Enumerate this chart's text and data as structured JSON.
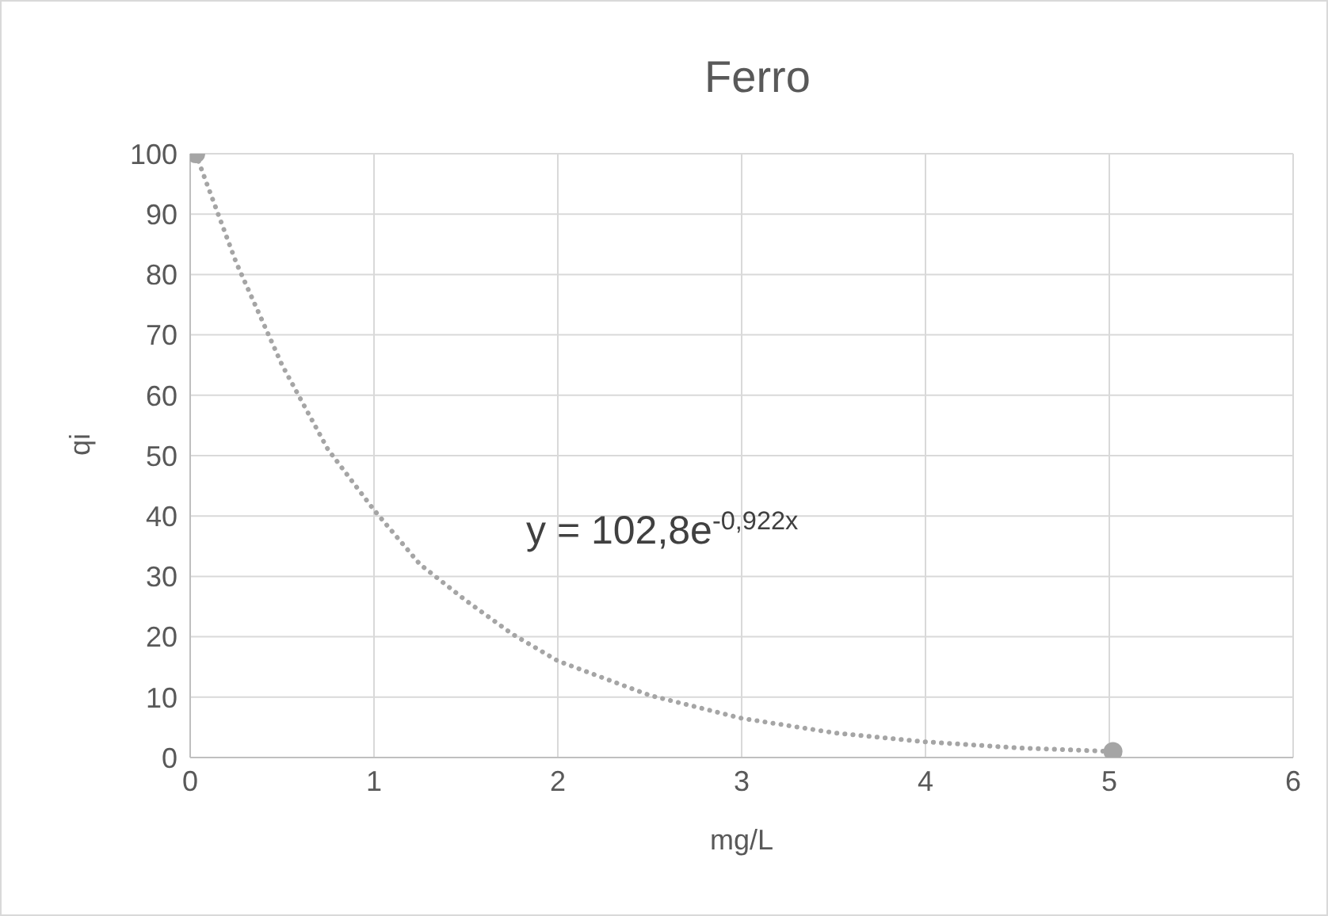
{
  "chart_data": {
    "type": "scatter",
    "title": "Ferro",
    "xlabel": "mg/L",
    "ylabel": "qi",
    "xlim": [
      0,
      6
    ],
    "xticks": [
      0,
      1,
      2,
      3,
      4,
      5,
      6
    ],
    "ylim": [
      0,
      100
    ],
    "yticks": [
      0,
      10,
      20,
      30,
      40,
      50,
      60,
      70,
      80,
      90,
      100
    ],
    "grid": true,
    "marker": "circle",
    "annotations": [
      "y = 102,8e$^{-0,922x}$"
    ],
    "series": [
      {
        "color": "#a5a5a5",
        "x": [
          0.03,
          5.02
        ],
        "values": [
          100,
          1
        ]
      },
      {
        "type": "line",
        "color": "#a5a5a5",
        "line_style": "dotted",
        "marker": "none",
        "x": [
          0.03,
          0.25,
          0.5,
          0.75,
          1,
          1.25,
          1.5,
          1.75,
          2,
          2.5,
          3,
          3.5,
          4,
          4.5,
          5.02
        ],
        "values": [
          100,
          82,
          65,
          51,
          41,
          32,
          26,
          20.5,
          16,
          10.3,
          6.5,
          4.1,
          2.6,
          1.6,
          1
        ]
      }
    ]
  }
}
